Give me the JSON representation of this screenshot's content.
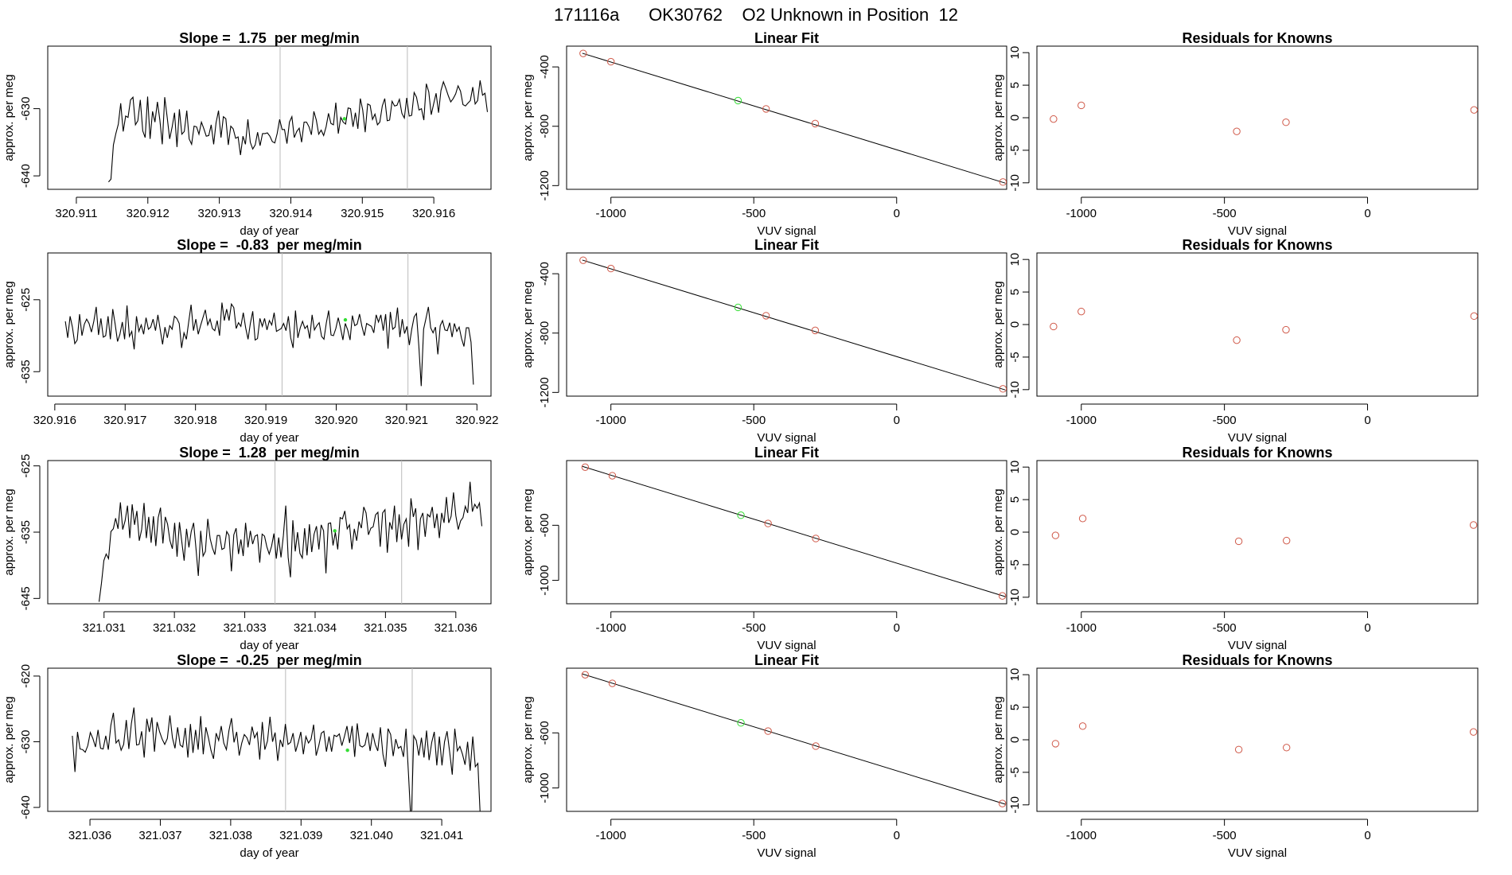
{
  "page_title": "171116a      OK30762    O2 Unknown in Position  12",
  "colors": {
    "line": "#000000",
    "known": "#d05a4a",
    "unknown": "#33dd33",
    "vline": "#bbbbbb",
    "fit": "#000000"
  },
  "labels": {
    "day_of_year": "day of year",
    "approx": "approx. per meg",
    "vuv": "VUV signal",
    "linear_fit": "Linear Fit",
    "residuals": "Residuals for Knowns"
  },
  "chart_data": [
    {
      "type": "line",
      "title": "Slope =  1.75  per meg/min",
      "xlabel": "day of year",
      "ylabel": "approx. per meg",
      "xlim": [
        320.9106,
        320.9168
      ],
      "ylim": [
        -642,
        -620.7
      ],
      "xticks": [
        "320.911",
        "320.912",
        "320.913",
        "320.914",
        "320.915",
        "320.916"
      ],
      "yticks": [
        -640,
        -630
      ],
      "vlines": [
        320.91385,
        320.91563
      ],
      "unknown_point": [
        320.91475,
        -631.5
      ],
      "x_start": 320.91145,
      "x_end": 320.91675,
      "values": [
        -640.9,
        -640.5,
        -635.4,
        -633.7,
        -632.3,
        -629.2,
        -633.4,
        -631.1,
        -631.3,
        -628.7,
        -628.3,
        -632.4,
        -631.8,
        -628.7,
        -633.3,
        -634.3,
        -628.2,
        -634.5,
        -630.4,
        -632.0,
        -629.0,
        -631.7,
        -635.3,
        -628.3,
        -631.3,
        -634.5,
        -632.8,
        -630.6,
        -635.7,
        -630.1,
        -633.8,
        -633.4,
        -630.3,
        -634.5,
        -635.3,
        -632.6,
        -632.7,
        -633.8,
        -632.0,
        -633.0,
        -634.1,
        -634.0,
        -632.4,
        -635.3,
        -632.1,
        -630.3,
        -634.3,
        -631.2,
        -631.5,
        -635.4,
        -632.6,
        -633.0,
        -634.4,
        -634.2,
        -636.9,
        -634.1,
        -635.3,
        -631.6,
        -635.0,
        -636.0,
        -635.4,
        -633.5,
        -635.5,
        -633.7,
        -633.7,
        -633.6,
        -634.1,
        -634.9,
        -635.1,
        -633.7,
        -631.6,
        -633.1,
        -633.1,
        -635.2,
        -632.0,
        -631.2,
        -634.3,
        -633.4,
        -632.9,
        -635.0,
        -632.0,
        -632.0,
        -632.7,
        -633.9,
        -630.4,
        -631.7,
        -633.8,
        -633.2,
        -634.0,
        -632.7,
        -630.7,
        -632.2,
        -632.4,
        -629.1,
        -633.7,
        -631.3,
        -632.0,
        -632.3,
        -629.9,
        -630.0,
        -632.7,
        -630.6,
        -633.0,
        -628.5,
        -630.2,
        -633.5,
        -629.3,
        -629.5,
        -631.6,
        -630.8,
        -632.4,
        -632.0,
        -629.6,
        -628.5,
        -631.8,
        -631.7,
        -628.9,
        -629.6,
        -629.5,
        -628.6,
        -630.7,
        -631.4,
        -628.4,
        -631.1,
        -631.0,
        -627.6,
        -628.3,
        -630.2,
        -630.0,
        -631.7,
        -626.3,
        -627.5,
        -630.9,
        -629.3,
        -627.7,
        -630.6,
        -627.3,
        -626.0,
        -627.0,
        -628.1,
        -629.0,
        -628.5,
        -627.8,
        -626.6,
        -627.4,
        -629.4,
        -629.6,
        -629.2,
        -628.8,
        -626.8,
        -629.3,
        -628.8,
        -625.8,
        -628.0,
        -627.7,
        -630.5
      ]
    },
    {
      "type": "scatter",
      "title": "Linear Fit",
      "xlabel": "VUV signal",
      "ylabel": "approx. per meg",
      "xlim": [
        -1155,
        385
      ],
      "ylim": [
        -1225,
        -260
      ],
      "xticks": [
        -1000,
        -500,
        0
      ],
      "yticks": [
        -1200,
        -800,
        -400
      ],
      "fit_line": [
        [
          -1100,
          -308
        ],
        [
          380,
          -1183
        ]
      ],
      "known_points": [
        [
          -1097,
          -309
        ],
        [
          -1000,
          -365
        ],
        [
          -457,
          -683
        ],
        [
          -285,
          -782
        ],
        [
          372,
          -1176
        ]
      ],
      "unknown_point": [
        -555,
        -627
      ]
    },
    {
      "type": "scatter",
      "title": "Residuals for Knowns",
      "xlabel": "VUV signal",
      "ylabel": "approx. per meg",
      "xlim": [
        -1155,
        385
      ],
      "ylim": [
        -11,
        11
      ],
      "xticks": [
        -1000,
        -500,
        0
      ],
      "yticks": [
        -10,
        -5,
        0,
        5,
        10
      ],
      "known_points": [
        [
          -1097,
          -0.2
        ],
        [
          -1000,
          1.9
        ],
        [
          -457,
          -2.1
        ],
        [
          -285,
          -0.7
        ],
        [
          372,
          1.2
        ]
      ]
    },
    {
      "type": "line",
      "title": "Slope =  -0.83  per meg/min",
      "xlabel": "day of year",
      "ylabel": "approx. per meg",
      "xlim": [
        320.9159,
        320.9222
      ],
      "ylim": [
        -638.4,
        -618.5
      ],
      "xticks": [
        "320.916",
        "320.917",
        "320.918",
        "320.919",
        "320.920",
        "320.921",
        "320.922"
      ],
      "yticks": [
        -635,
        -625
      ],
      "vlines": [
        320.91923,
        320.92102
      ],
      "unknown_point": [
        320.92013,
        -627.8
      ],
      "x_start": 320.91615,
      "x_end": 320.92195,
      "values": [
        -628.0,
        -630.3,
        -627.3,
        -628.8,
        -631.1,
        -630.6,
        -627.0,
        -630.0,
        -628.4,
        -627.7,
        -628.3,
        -629.5,
        -628.0,
        -626.0,
        -629.9,
        -627.6,
        -630.2,
        -630.0,
        -627.3,
        -630.5,
        -626.3,
        -628.4,
        -630.8,
        -629.8,
        -628.1,
        -630.5,
        -625.8,
        -630.1,
        -629.4,
        -631.9,
        -627.3,
        -629.4,
        -628.5,
        -629.8,
        -627.5,
        -629.1,
        -628.8,
        -627.7,
        -629.3,
        -627.1,
        -629.2,
        -631.2,
        -628.8,
        -630.3,
        -628.6,
        -629.1,
        -627.3,
        -627.6,
        -628.3,
        -631.7,
        -629.6,
        -630.5,
        -628.1,
        -625.7,
        -629.3,
        -627.7,
        -629.8,
        -628.6,
        -627.5,
        -626.4,
        -628.5,
        -627.7,
        -629.0,
        -629.3,
        -627.9,
        -630.0,
        -625.4,
        -627.9,
        -626.3,
        -627.9,
        -625.6,
        -626.1,
        -629.0,
        -628.2,
        -628.7,
        -626.8,
        -628.9,
        -630.5,
        -628.3,
        -626.6,
        -630.6,
        -630.4,
        -627.6,
        -628.7,
        -627.6,
        -629.2,
        -627.9,
        -628.5,
        -626.8,
        -629.4,
        -629.2,
        -629.0,
        -628.3,
        -629.3,
        -627.3,
        -630.3,
        -631.7,
        -626.5,
        -630.3,
        -628.9,
        -628.0,
        -629.0,
        -628.6,
        -630.4,
        -627.1,
        -629.2,
        -628.6,
        -628.2,
        -630.1,
        -630.5,
        -628.2,
        -626.5,
        -629.9,
        -630.0,
        -629.0,
        -627.5,
        -628.9,
        -630.6,
        -628.3,
        -629.2,
        -630.6,
        -627.2,
        -628.6,
        -628.4,
        -627.0,
        -628.7,
        -630.0,
        -628.3,
        -628.5,
        -628.7,
        -629.6,
        -627.1,
        -628.1,
        -627.1,
        -629.3,
        -627.0,
        -631.8,
        -626.7,
        -629.1,
        -628.8,
        -626.1,
        -630.2,
        -627.7,
        -629.7,
        -628.7,
        -631.3,
        -629.1,
        -627.4,
        -626.9,
        -631.4,
        -637.0,
        -629.1,
        -627.6,
        -626.0,
        -628.9,
        -629.6,
        -628.8,
        -632.6,
        -628.6,
        -627.9,
        -629.2,
        -629.3,
        -628.2,
        -630.2,
        -628.3,
        -629.4,
        -628.8,
        -630.4,
        -631.5,
        -628.9,
        -628.9,
        -630.9,
        -636.8
      ]
    },
    {
      "type": "scatter",
      "title": "Linear Fit",
      "xlabel": "VUV signal",
      "ylabel": "approx. per meg",
      "xlim": [
        -1155,
        385
      ],
      "ylim": [
        -1225,
        -260
      ],
      "xticks": [
        -1000,
        -500,
        0
      ],
      "yticks": [
        -1200,
        -800,
        -400
      ],
      "fit_line": [
        [
          -1100,
          -308
        ],
        [
          380,
          -1183
        ]
      ],
      "known_points": [
        [
          -1097,
          -309
        ],
        [
          -1000,
          -365
        ],
        [
          -457,
          -683
        ],
        [
          -285,
          -782
        ],
        [
          372,
          -1176
        ]
      ],
      "unknown_point": [
        -555,
        -627
      ]
    },
    {
      "type": "scatter",
      "title": "Residuals for Knowns",
      "xlabel": "VUV signal",
      "ylabel": "approx. per meg",
      "xlim": [
        -1155,
        385
      ],
      "ylim": [
        -11,
        11
      ],
      "xticks": [
        -1000,
        -500,
        0
      ],
      "yticks": [
        -10,
        -5,
        0,
        5,
        10
      ],
      "known_points": [
        [
          -1097,
          -0.3
        ],
        [
          -1000,
          2.0
        ],
        [
          -457,
          -2.4
        ],
        [
          -285,
          -0.8
        ],
        [
          372,
          1.3
        ]
      ]
    },
    {
      "type": "line",
      "title": "Slope =  1.28  per meg/min",
      "xlabel": "day of year",
      "ylabel": "approx. per meg",
      "xlim": [
        321.0302,
        321.0365
      ],
      "ylim": [
        -645.8,
        -624.2
      ],
      "xticks": [
        "321.031",
        "321.032",
        "321.033",
        "321.034",
        "321.035",
        "321.036"
      ],
      "yticks": [
        -645,
        -635,
        -625
      ],
      "vlines": [
        321.03343,
        321.03523
      ],
      "unknown_point": [
        321.03428,
        -634.8
      ],
      "x_start": 321.03093,
      "x_end": 321.03637,
      "values": [
        -645.5,
        -642.7,
        -639.3,
        -638.3,
        -639.0,
        -634.9,
        -634.5,
        -632.9,
        -634.5,
        -630.5,
        -634.6,
        -633.3,
        -631.0,
        -635.9,
        -630.8,
        -633.9,
        -631.8,
        -636.3,
        -634.6,
        -630.6,
        -635.9,
        -632.7,
        -636.6,
        -632.6,
        -637.1,
        -632.8,
        -631.3,
        -636.7,
        -632.7,
        -633.8,
        -636.3,
        -637.5,
        -633.6,
        -638.7,
        -633.5,
        -636.5,
        -639.3,
        -634.5,
        -637.3,
        -634.9,
        -633.6,
        -637.5,
        -641.6,
        -634.8,
        -638.6,
        -637.9,
        -633.0,
        -636.0,
        -637.4,
        -638.4,
        -635.5,
        -635.5,
        -637.6,
        -637.4,
        -634.9,
        -635.5,
        -640.9,
        -635.4,
        -634.4,
        -638.3,
        -636.1,
        -638.6,
        -633.6,
        -637.3,
        -634.8,
        -636.8,
        -635.6,
        -635.4,
        -639.6,
        -635.3,
        -635.6,
        -637.2,
        -638.3,
        -637.1,
        -635.2,
        -639.0,
        -635.8,
        -638.8,
        -635.5,
        -631.0,
        -638.8,
        -641.8,
        -633.2,
        -637.9,
        -635.0,
        -638.2,
        -638.9,
        -634.4,
        -638.5,
        -633.8,
        -638.0,
        -635.3,
        -634.1,
        -637.6,
        -633.9,
        -634.8,
        -641.2,
        -633.7,
        -633.6,
        -637.0,
        -635.0,
        -637.6,
        -632.8,
        -633.0,
        -631.8,
        -634.5,
        -633.9,
        -637.6,
        -634.5,
        -636.3,
        -633.4,
        -634.4,
        -631.2,
        -632.1,
        -635.4,
        -634.4,
        -634.2,
        -632.4,
        -632.0,
        -637.2,
        -632.1,
        -631.6,
        -638.1,
        -633.5,
        -634.6,
        -631.0,
        -636.5,
        -632.3,
        -636.1,
        -633.8,
        -633.0,
        -637.2,
        -629.9,
        -632.7,
        -631.4,
        -637.7,
        -633.0,
        -632.1,
        -635.7,
        -632.3,
        -632.7,
        -631.2,
        -634.4,
        -632.2,
        -635.9,
        -632.1,
        -633.6,
        -629.7,
        -633.6,
        -632.6,
        -629.0,
        -632.5,
        -634.6,
        -633.3,
        -632.8,
        -631.1,
        -632.1,
        -627.4,
        -631.9,
        -630.8,
        -631.4,
        -630.6,
        -634.1
      ]
    },
    {
      "type": "scatter",
      "title": "Linear Fit",
      "xlabel": "VUV signal",
      "ylabel": "approx. per meg",
      "xlim": [
        -1155,
        385
      ],
      "ylim": [
        -1170,
        -130
      ],
      "xticks": [
        -1000,
        -500,
        0
      ],
      "yticks": [
        -1000,
        -600
      ],
      "fit_line": [
        [
          -1100,
          -172
        ],
        [
          380,
          -1118
        ]
      ],
      "known_points": [
        [
          -1090,
          -178
        ],
        [
          -995,
          -240
        ],
        [
          -450,
          -587
        ],
        [
          -283,
          -696
        ],
        [
          370,
          -1113
        ]
      ],
      "unknown_point": [
        -545,
        -527
      ]
    },
    {
      "type": "scatter",
      "title": "Residuals for Knowns",
      "xlabel": "VUV signal",
      "ylabel": "approx. per meg",
      "xlim": [
        -1155,
        385
      ],
      "ylim": [
        -11,
        11
      ],
      "xticks": [
        -1000,
        -500,
        0
      ],
      "yticks": [
        -10,
        -5,
        0,
        5,
        10
      ],
      "known_points": [
        [
          -1090,
          -0.5
        ],
        [
          -995,
          2.1
        ],
        [
          -450,
          -1.4
        ],
        [
          -283,
          -1.3
        ],
        [
          370,
          1.1
        ]
      ]
    },
    {
      "type": "line",
      "title": "Slope =  -0.25  per meg/min",
      "xlabel": "day of year",
      "ylabel": "approx. per meg",
      "xlim": [
        321.0354,
        321.0417
      ],
      "ylim": [
        -640.6,
        -618.8
      ],
      "xticks": [
        "321.036",
        "321.037",
        "321.038",
        "321.039",
        "321.040",
        "321.041"
      ],
      "yticks": [
        -640,
        -630,
        -620
      ],
      "vlines": [
        321.03878,
        321.04058
      ],
      "unknown_point": [
        321.03966,
        -631.3
      ],
      "x_start": 321.03575,
      "x_end": 321.04155,
      "values": [
        -629.1,
        -634.6,
        -628.5,
        -631.1,
        -631.2,
        -631.6,
        -630.6,
        -628.6,
        -629.5,
        -630.8,
        -628.2,
        -631.0,
        -631.1,
        -629.1,
        -631.2,
        -627.5,
        -625.6,
        -630.2,
        -629.7,
        -631.3,
        -630.4,
        -626.7,
        -631.1,
        -627.2,
        -624.8,
        -630.5,
        -630.4,
        -628.4,
        -632.4,
        -626.5,
        -628.5,
        -626.3,
        -631.5,
        -627.0,
        -628.5,
        -629.6,
        -630.4,
        -629.5,
        -626.0,
        -629.4,
        -631.0,
        -627.8,
        -630.5,
        -630.8,
        -627.9,
        -632.4,
        -627.3,
        -631.7,
        -628.2,
        -631.2,
        -626.1,
        -631.9,
        -627.8,
        -629.4,
        -631.3,
        -632.6,
        -628.7,
        -629.8,
        -627.6,
        -630.2,
        -631.2,
        -628.3,
        -626.4,
        -630.1,
        -628.5,
        -632.1,
        -630.2,
        -628.9,
        -629.4,
        -630.5,
        -627.7,
        -629.4,
        -628.6,
        -632.7,
        -627.0,
        -631.2,
        -629.9,
        -626.2,
        -630.0,
        -628.6,
        -632.9,
        -629.7,
        -630.8,
        -627.3,
        -630.4,
        -630.1,
        -628.7,
        -631.5,
        -630.1,
        -628.5,
        -631.9,
        -629.2,
        -630.2,
        -629.6,
        -627.4,
        -632.1,
        -630.6,
        -628.7,
        -628.4,
        -631.5,
        -629.2,
        -631.5,
        -629.0,
        -629.2,
        -628.8,
        -630.6,
        -629.2,
        -627.6,
        -630.2,
        -627.6,
        -632.3,
        -627.2,
        -630.6,
        -630.8,
        -630.5,
        -628.6,
        -631.4,
        -628.7,
        -630.4,
        -631.4,
        -627.8,
        -631.9,
        -633.8,
        -628.0,
        -628.9,
        -632.2,
        -629.6,
        -631.0,
        -630.7,
        -632.3,
        -628.0,
        -635.1,
        -643.0,
        -629.1,
        -629.8,
        -632.1,
        -629.4,
        -632.4,
        -628.3,
        -632.8,
        -630.1,
        -628.5,
        -633.6,
        -629.2,
        -633.6,
        -630.0,
        -628.4,
        -631.5,
        -635.0,
        -628.0,
        -631.4,
        -630.7,
        -631.9,
        -633.5,
        -630.0,
        -634.4,
        -629.2,
        -633.8,
        -633.3,
        -641.9
      ]
    },
    {
      "type": "scatter",
      "title": "Linear Fit",
      "xlabel": "VUV signal",
      "ylabel": "approx. per meg",
      "xlim": [
        -1155,
        385
      ],
      "ylim": [
        -1170,
        -130
      ],
      "xticks": [
        -1000,
        -500,
        0
      ],
      "yticks": [
        -1000,
        -600
      ],
      "fit_line": [
        [
          -1100,
          -172
        ],
        [
          380,
          -1118
        ]
      ],
      "known_points": [
        [
          -1090,
          -178
        ],
        [
          -995,
          -240
        ],
        [
          -450,
          -587
        ],
        [
          -283,
          -696
        ],
        [
          370,
          -1113
        ]
      ],
      "unknown_point": [
        -545,
        -527
      ]
    },
    {
      "type": "scatter",
      "title": "Residuals for Knowns",
      "xlabel": "VUV signal",
      "ylabel": "approx. per meg",
      "xlim": [
        -1155,
        385
      ],
      "ylim": [
        -11,
        11
      ],
      "xticks": [
        -1000,
        -500,
        0
      ],
      "yticks": [
        -10,
        -5,
        0,
        5,
        10
      ],
      "known_points": [
        [
          -1090,
          -0.6
        ],
        [
          -995,
          2.1
        ],
        [
          -450,
          -1.5
        ],
        [
          -283,
          -1.2
        ],
        [
          370,
          1.2
        ]
      ]
    }
  ]
}
